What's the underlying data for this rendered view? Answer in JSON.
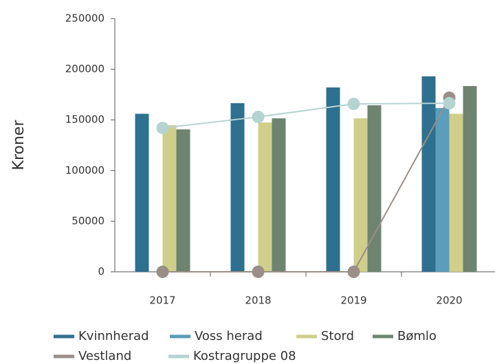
{
  "chart_data": {
    "type": "bar",
    "y_label": "Kroner",
    "categories": [
      "2017",
      "2018",
      "2019",
      "2020"
    ],
    "series": [
      {
        "name": "Kvinnherad",
        "color": "#2e7090",
        "values": [
          156000,
          166500,
          182000,
          193000
        ]
      },
      {
        "name": "Voss herad",
        "color": "#5b9dba",
        "values": [
          null,
          null,
          null,
          161700
        ]
      },
      {
        "name": "Stord",
        "color": "#cfcf8a",
        "values": [
          144700,
          147400,
          151500,
          156000
        ]
      },
      {
        "name": "Bømlo",
        "color": "#6e8470",
        "values": [
          140600,
          151500,
          164400,
          183400
        ]
      },
      {
        "name": "Vestland",
        "color": "#9a8f88",
        "type": "line",
        "values": [
          0,
          0,
          0,
          171900
        ]
      },
      {
        "name": "Kostragruppe 08",
        "color": "#b5d3d3",
        "type": "line",
        "values": [
          142000,
          152900,
          165800,
          166400
        ]
      }
    ],
    "ylim": [
      0,
      250000
    ],
    "yticks": [
      0,
      50000,
      100000,
      150000,
      200000,
      250000
    ],
    "grid": false
  }
}
